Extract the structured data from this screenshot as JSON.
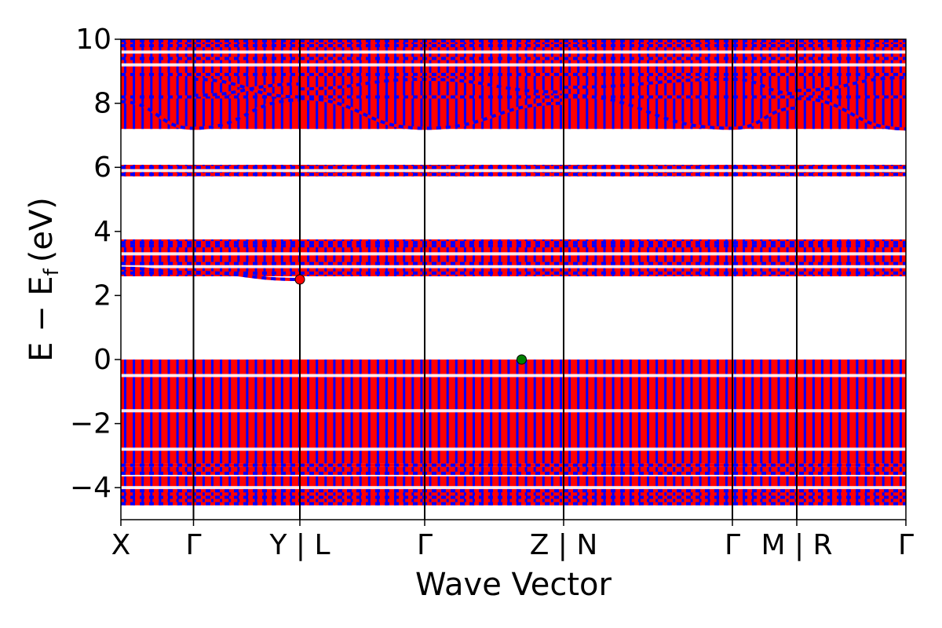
{
  "chart_data": {
    "type": "line",
    "xlabel": "Wave Vector",
    "ylabel": "E − E",
    "ylabel_subscript": "f",
    "ylabel_unit": "(eV)",
    "ylim": [
      -5,
      10
    ],
    "yticks": [
      -4,
      -2,
      0,
      2,
      4,
      6,
      8,
      10
    ],
    "ytick_labels": [
      "−4",
      "−2",
      "0",
      "2",
      "4",
      "6",
      "8",
      "10"
    ],
    "x_range": [
      0,
      1
    ],
    "kpoints": [
      {
        "label": "X",
        "pos": 0.0
      },
      {
        "label": "Γ",
        "pos": 0.0925
      },
      {
        "label": "Y | L",
        "pos": 0.228
      },
      {
        "label": "Γ",
        "pos": 0.387
      },
      {
        "label": "Z | N",
        "pos": 0.564
      },
      {
        "label": "Γ",
        "pos": 0.779
      },
      {
        "label": "M | R",
        "pos": 0.861
      },
      {
        "label": "Γ",
        "pos": 1.0
      }
    ],
    "series_colors": {
      "spin_up": "#ff0000",
      "spin_down": "#0000ff"
    },
    "band_groups": [
      {
        "name": "valence",
        "ymin": -4.55,
        "ymax": 0.0
      },
      {
        "name": "conduction-1",
        "ymin": 2.6,
        "ymax": 3.75
      },
      {
        "name": "conduction-2",
        "ymin": 5.72,
        "ymax": 6.08
      },
      {
        "name": "conduction-3",
        "ymin": 7.2,
        "ymax": 10.0
      }
    ],
    "gaps": [
      {
        "y": -4.0
      },
      {
        "y": -3.6
      },
      {
        "y": -3.3
      },
      {
        "y": -2.8
      },
      {
        "y": -1.6
      },
      {
        "y": -0.5
      },
      {
        "y": 2.9
      },
      {
        "y": 3.3
      },
      {
        "y": 5.9
      },
      {
        "y": 9.2
      },
      {
        "y": 9.6
      }
    ],
    "dispersive_bands": [
      {
        "points": [
          [
            0.0,
            8.05
          ],
          [
            0.0925,
            7.22
          ],
          [
            0.228,
            8.1
          ]
        ]
      },
      {
        "points": [
          [
            0.0925,
            8.75
          ],
          [
            0.228,
            8.2
          ]
        ]
      },
      {
        "points": [
          [
            0.0925,
            8.25
          ],
          [
            0.228,
            8.6
          ]
        ]
      },
      {
        "points": [
          [
            0.228,
            8.15
          ],
          [
            0.387,
            7.22
          ],
          [
            0.564,
            8.0
          ]
        ]
      },
      {
        "points": [
          [
            0.228,
            8.45
          ],
          [
            0.387,
            8.75
          ],
          [
            0.564,
            8.35
          ]
        ]
      },
      {
        "points": [
          [
            0.564,
            8.25
          ],
          [
            0.779,
            7.22
          ],
          [
            0.861,
            7.85
          ]
        ]
      },
      {
        "points": [
          [
            0.564,
            8.5
          ],
          [
            0.779,
            8.75
          ],
          [
            0.861,
            8.3
          ]
        ]
      },
      {
        "points": [
          [
            0.861,
            8.15
          ],
          [
            1.0,
            7.2
          ]
        ]
      },
      {
        "points": [
          [
            0.861,
            8.4
          ],
          [
            1.0,
            8.8
          ]
        ]
      },
      {
        "points": [
          [
            0.0,
            2.85
          ],
          [
            0.0925,
            2.72
          ],
          [
            0.228,
            2.5
          ]
        ]
      }
    ],
    "flat_bands": [
      -4.5,
      -4.3,
      -4.1,
      -3.55,
      -3.3,
      2.7,
      3.0,
      3.55,
      3.65,
      5.78,
      6.0,
      8.2,
      8.9,
      9.4,
      9.8,
      9.95
    ],
    "markers": [
      {
        "name": "cbm",
        "x": 0.228,
        "y": 2.5,
        "color": "#ff0000"
      },
      {
        "name": "vbm",
        "x": 0.5105,
        "y": 0.0,
        "color": "#008000"
      }
    ]
  }
}
